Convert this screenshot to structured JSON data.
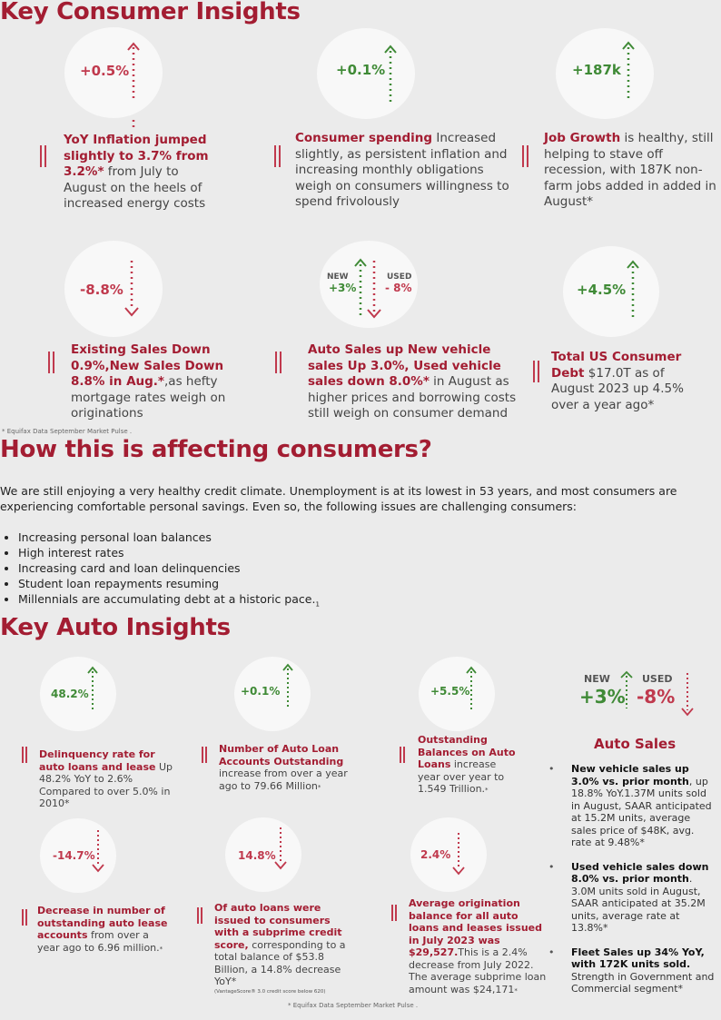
{
  "sections": {
    "consumer_title": "Key Consumer Insights",
    "affecting_title": "How this is affecting consumers?",
    "auto_title": "Key Auto Insights"
  },
  "consumer_cards": [
    {
      "metric": "+0.5%",
      "direction": "up",
      "title": "YoY Inflation jumped slightly to 3.7% from 3.2%*",
      "body": " from July to August on the heels of increased energy costs"
    },
    {
      "metric": "+0.1%",
      "direction": "up",
      "title": "Consumer spending",
      "body": " Increased slightly, as persistent inflation and increasing monthly obligations weigh on consumers willingness to spend frivolously"
    },
    {
      "metric": "+187k",
      "direction": "up",
      "title": "Job Growth",
      "body": " is healthy, still helping to stave off recession, with 187K non-farm jobs added in added in August*"
    },
    {
      "metric": "-8.8%",
      "direction": "down",
      "title": "Existing Sales Down 0.9%,New Sales Down 8.8% in Aug.*",
      "body": ",as hefty mortgage rates weigh on originations"
    },
    {
      "metric_new_label": "NEW",
      "metric_new": "+3%",
      "metric_used_label": "USED",
      "metric_used": "- 8%",
      "direction": "both",
      "title": "Auto Sales up New vehicle sales Up 3.0%, Used vehicle sales down 8.0%*",
      "body": " in August as higher prices and borrowing costs still weigh on consumer demand"
    },
    {
      "metric": "+4.5%",
      "direction": "up",
      "title": "Total US Consumer Debt",
      "body": "  $17.0T as of August 2023 up 4.5% over a year ago*"
    }
  ],
  "source_note_top": "* Equifax Data September Market Pulse .",
  "affecting": {
    "paragraph": "  We are still enjoying a very healthy credit climate. Unemployment is at its lowest in 53 years, and most consumers are experiencing comfortable personal savings.  Even so, the following issues are challenging consumers:",
    "bullets": [
      "Increasing personal loan balances",
      "High interest rates",
      "Increasing card and loan delinquencies",
      "Student loan repayments resuming",
      "Millennials are accumulating debt at a historic pace."
    ],
    "footnote_mark": "1"
  },
  "auto_cards": [
    {
      "metric": "48.2%",
      "direction": "up",
      "title": "Delinquency rate for auto loans and lease",
      "body": " Up 48.2% YoY to 2.6% Compared to over 5.0% in 2010*"
    },
    {
      "metric": "+0.1%",
      "direction": "up",
      "title": "Number of Auto Loan Accounts Outstanding",
      "body": " increase from over a year ago to 79.66 Million",
      "mark": "*"
    },
    {
      "metric": "+5.5%",
      "direction": "up",
      "title": "Outstanding Balances on Auto Loans",
      "body": " increase year over year to 1.549 Trillion.",
      "mark": "*"
    },
    {
      "metric": "-14.7%",
      "direction": "down",
      "title": "Decrease in number of outstanding auto lease accounts",
      "body": " from over a year ago to 6.96 million.",
      "mark": "*"
    },
    {
      "metric": "14.8%",
      "direction": "down",
      "title": "Of auto loans were issued to consumers with a subprime credit score,",
      "body": " corresponding to a total balance of $53.8 Billion, a 14.8% decrease YoY*",
      "small": "(VantageScore® 3.0 credit score below 620)"
    },
    {
      "metric": "2.4%",
      "direction": "down",
      "title": "Average origination balance for all auto loans and leases issued in July 2023 was $29,527.",
      "body": "This is a 2.4% decrease from July 2022. The average subprime loan amount was $24,171",
      "mark": "*"
    }
  ],
  "auto_sales": {
    "new_label": "NEW",
    "new_value": "+3%",
    "used_label": "USED",
    "used_value": "-8%",
    "heading": "Auto Sales",
    "items": [
      {
        "bold": "New vehicle sales up 3.0% vs. prior month",
        "rest": ", up 18.8% YoY.1.37M units sold in August, SAAR anticipated at 15.2M units, average sales price of $48K, avg. rate at 9.48%*"
      },
      {
        "bold": "Used vehicle sales down 8.0% vs. prior month",
        "rest": ". 3.0M units sold in August, SAAR anticipated at 35.2M units, average rate at 13.8%*"
      },
      {
        "bold": "Fleet Sales up 34% YoY, with 172K units sold.",
        "rest": " Strength in Government and Commercial segment*"
      }
    ]
  },
  "source_note_bottom": "* Equifax Data September Market Pulse .",
  "colors": {
    "accent": "#a31d32",
    "up": "#3f8a36",
    "down": "#c0394d",
    "background": "#ebebeb",
    "circle": "#f8f8f8"
  }
}
